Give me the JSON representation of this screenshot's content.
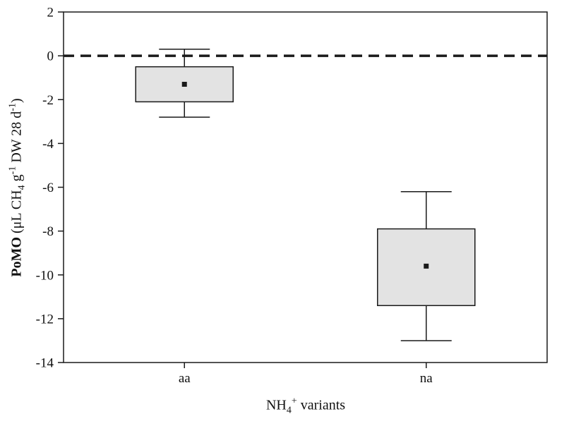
{
  "figure": {
    "background": "#ffffff"
  },
  "chart_data": {
    "type": "boxplot",
    "title": "",
    "xlabel": "NH4+ variants",
    "ylabel": "PoMO (uL CH4 g-1 DW 28 d-1)",
    "xlabel_segments": [
      {
        "text": "NH",
        "style": "normal"
      },
      {
        "text": "4",
        "style": "sub"
      },
      {
        "text": "+",
        "style": "sup"
      },
      {
        "text": " variants",
        "style": "normal"
      }
    ],
    "ylabel_segments": [
      {
        "text": "PoMO",
        "style": "bold"
      },
      {
        "text": " (μL CH",
        "style": "normal"
      },
      {
        "text": "4",
        "style": "sub"
      },
      {
        "text": " g",
        "style": "normal"
      },
      {
        "text": "-1",
        "style": "sup"
      },
      {
        "text": " DW 28 d",
        "style": "normal"
      },
      {
        "text": "-1",
        "style": "sup"
      },
      {
        "text": ")",
        "style": "normal"
      }
    ],
    "categories": [
      "aa",
      "na"
    ],
    "ylim": [
      -14,
      2
    ],
    "yticks": [
      2,
      0,
      -2,
      -4,
      -6,
      -8,
      -10,
      -12,
      -14
    ],
    "reference_line_y": 0,
    "grid": false,
    "legend": null,
    "boxes": [
      {
        "category": "aa",
        "whisker_high": 0.3,
        "box_top": -0.5,
        "mean": -1.3,
        "box_bottom": -2.1,
        "whisker_low": -2.8
      },
      {
        "category": "na",
        "whisker_high": -6.2,
        "box_top": -7.9,
        "mean": -9.6,
        "box_bottom": -11.4,
        "whisker_low": -13.0
      }
    ],
    "styles": {
      "box_fill": "#e3e3e3",
      "line_color": "#1a1a1a",
      "mean_marker": "filled-square",
      "reference_line_style": "dashed"
    }
  }
}
